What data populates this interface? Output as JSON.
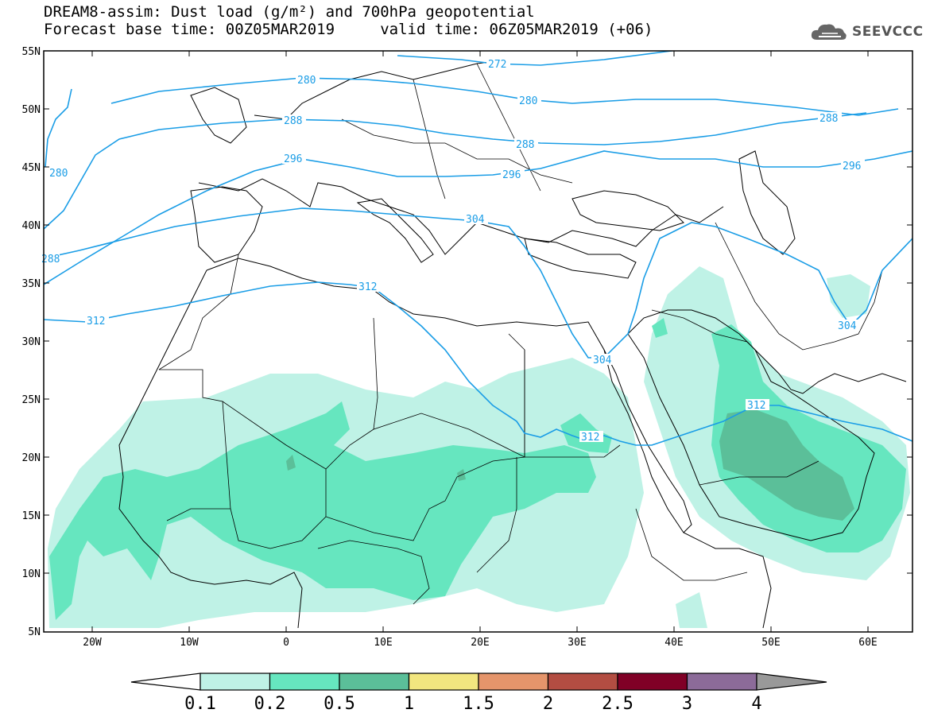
{
  "header": {
    "title_line1": "DREAM8-assim: Dust load (g/m²) and 700hPa geopotential",
    "title_line2": "Forecast base time: 00Z05MAR2019     valid time: 06Z05MAR2019 (+06)"
  },
  "logo": {
    "text": "SEEVCCC",
    "icon": "cloud-icon"
  },
  "map": {
    "lat_labels": [
      "55N",
      "50N",
      "45N",
      "40N",
      "35N",
      "30N",
      "25N",
      "20N",
      "15N",
      "10N",
      "5N"
    ],
    "lon_labels": [
      "20W",
      "10W",
      "0",
      "10E",
      "20E",
      "30E",
      "40E",
      "50E",
      "60E"
    ],
    "contour_labels": [
      "272",
      "280",
      "280",
      "288",
      "288",
      "288",
      "296",
      "296",
      "296",
      "304",
      "304",
      "304",
      "312",
      "312",
      "312",
      "312",
      "280",
      "288"
    ]
  },
  "legend": {
    "bins": [
      {
        "label": "0.1",
        "color": "#bff2e6"
      },
      {
        "label": "0.2",
        "color": "#66e6bf"
      },
      {
        "label": "0.5",
        "color": "#5bbf99"
      },
      {
        "label": "1",
        "color": "#f2e67f"
      },
      {
        "label": "1.5",
        "color": "#e5956b"
      },
      {
        "label": "2",
        "color": "#b34d42"
      },
      {
        "label": "2.5",
        "color": "#800026"
      },
      {
        "label": "3",
        "color": "#8c6b99"
      },
      {
        "label": "4",
        "color": "#999999"
      }
    ]
  },
  "colors": {
    "dust_light": "#bff2e6",
    "dust_mid": "#66e6bf",
    "dust_dark": "#5bbf99",
    "dust_core": "#4d9e80",
    "geopotential_line": "#1a9de6",
    "coast": "#000000"
  }
}
